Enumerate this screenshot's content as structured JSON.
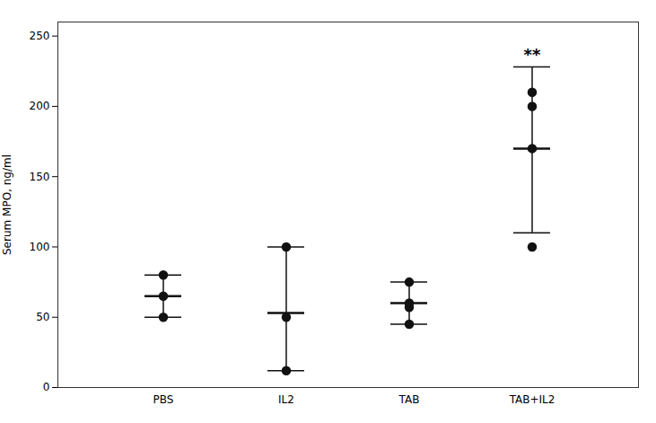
{
  "chart_data": {
    "type": "strip",
    "categories": [
      "PBS",
      "IL2",
      "TAB",
      "TAB+IL2"
    ],
    "points": [
      [
        50,
        65,
        80
      ],
      [
        12,
        50,
        100
      ],
      [
        45,
        57,
        60,
        75
      ],
      [
        100,
        200,
        210,
        170
      ]
    ],
    "means": [
      65,
      53,
      60,
      170
    ],
    "error_upper": [
      80,
      100,
      75,
      228
    ],
    "error_lower": [
      50,
      12,
      45,
      110
    ],
    "ylabel": "Serum MPO, ng/ml",
    "ylim": [
      0,
      260
    ],
    "yticks": [
      0,
      50,
      100,
      150,
      200,
      250
    ],
    "color": "#111111",
    "grid": false,
    "annotations": [
      {
        "text": "**",
        "category": "TAB+IL2"
      }
    ]
  }
}
